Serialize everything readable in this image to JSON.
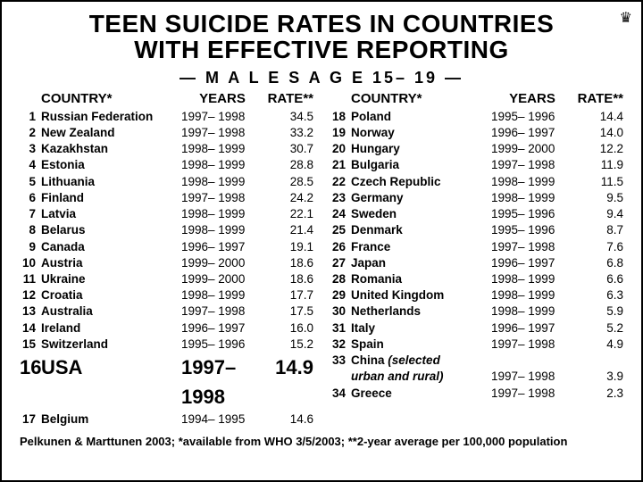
{
  "title_line1": "TEEN SUICIDE RATES IN COUNTRIES",
  "title_line2": "WITH EFFECTIVE REPORTING",
  "subheader": "— M A L E S   A G E   15– 19 —",
  "headers": {
    "country": "COUNTRY*",
    "years": "YEARS",
    "rate": "RATE**"
  },
  "crown_glyph": "♛",
  "left_rows": [
    {
      "rank": "1",
      "country": "Russian Federation",
      "years": "1997– 1998",
      "rate": "34.5"
    },
    {
      "rank": "2",
      "country": "New Zealand",
      "years": "1997– 1998",
      "rate": "33.2"
    },
    {
      "rank": "3",
      "country": "Kazakhstan",
      "years": "1998– 1999",
      "rate": "30.7"
    },
    {
      "rank": "4",
      "country": "Estonia",
      "years": "1998– 1999",
      "rate": "28.8"
    },
    {
      "rank": "5",
      "country": "Lithuania",
      "years": "1998– 1999",
      "rate": "28.5"
    },
    {
      "rank": "6",
      "country": "Finland",
      "years": "1997– 1998",
      "rate": "24.2"
    },
    {
      "rank": "7",
      "country": "Latvia",
      "years": "1998– 1999",
      "rate": "22.1"
    },
    {
      "rank": "8",
      "country": "Belarus",
      "years": "1998– 1999",
      "rate": "21.4"
    },
    {
      "rank": "9",
      "country": "Canada",
      "years": "1996– 1997",
      "rate": "19.1"
    },
    {
      "rank": "10",
      "country": "Austria",
      "years": "1999– 2000",
      "rate": "18.6"
    },
    {
      "rank": "11",
      "country": "Ukraine",
      "years": "1999– 2000",
      "rate": "18.6"
    },
    {
      "rank": "12",
      "country": "Croatia",
      "years": "1998– 1999",
      "rate": "17.7"
    },
    {
      "rank": "13",
      "country": "Australia",
      "years": "1997– 1998",
      "rate": "17.5"
    },
    {
      "rank": "14",
      "country": "Ireland",
      "years": "1996– 1997",
      "rate": "16.0"
    },
    {
      "rank": "15",
      "country": "Switzerland",
      "years": "1995– 1996",
      "rate": "15.2"
    }
  ],
  "usa_row": {
    "rank": "16",
    "country": "USA",
    "years": "1997– 1998",
    "rate": "14.9"
  },
  "belgium_row": {
    "rank": "17",
    "country": "Belgium",
    "years": "1994– 1995",
    "rate": "14.6"
  },
  "right_rows": [
    {
      "rank": "18",
      "country": "Poland",
      "years": "1995– 1996",
      "rate": "14.4"
    },
    {
      "rank": "19",
      "country": "Norway",
      "years": "1996– 1997",
      "rate": "14.0"
    },
    {
      "rank": "20",
      "country": "Hungary",
      "years": "1999– 2000",
      "rate": "12.2"
    },
    {
      "rank": "21",
      "country": "Bulgaria",
      "years": "1997– 1998",
      "rate": "11.9"
    },
    {
      "rank": "22",
      "country": "Czech Republic",
      "years": "1998– 1999",
      "rate": "11.5"
    },
    {
      "rank": "23",
      "country": "Germany",
      "years": "1998– 1999",
      "rate": "9.5"
    },
    {
      "rank": "24",
      "country": "Sweden",
      "years": "1995– 1996",
      "rate": "9.4"
    },
    {
      "rank": "25",
      "country": "Denmark",
      "years": "1995– 1996",
      "rate": "8.7"
    },
    {
      "rank": "26",
      "country": "France",
      "years": "1997– 1998",
      "rate": "7.6"
    },
    {
      "rank": "27",
      "country": "Japan",
      "years": "1996– 1997",
      "rate": "6.8"
    },
    {
      "rank": "28",
      "country": "Romania",
      "years": "1998– 1999",
      "rate": "6.6"
    },
    {
      "rank": "29",
      "country": "United Kingdom",
      "years": "1998– 1999",
      "rate": "6.3"
    },
    {
      "rank": "30",
      "country": "Netherlands",
      "years": "1998– 1999",
      "rate": "5.9"
    },
    {
      "rank": "31",
      "country": "Italy",
      "years": "1996– 1997",
      "rate": "5.2"
    },
    {
      "rank": "32",
      "country": "Spain",
      "years": "1997– 1998",
      "rate": "4.9"
    }
  ],
  "china_row": {
    "rank": "33",
    "country_main": "China",
    "country_sub1": "(selected",
    "country_sub2": "urban and rural)",
    "years": "1997– 1998",
    "rate": "3.9"
  },
  "greece_row": {
    "rank": "34",
    "country": "Greece",
    "years": "1997– 1998",
    "rate": "2.3"
  },
  "footnote": "Pelkunen & Marttunen 2003; *available from WHO 3/5/2003; **2-year average per 100,000 population"
}
